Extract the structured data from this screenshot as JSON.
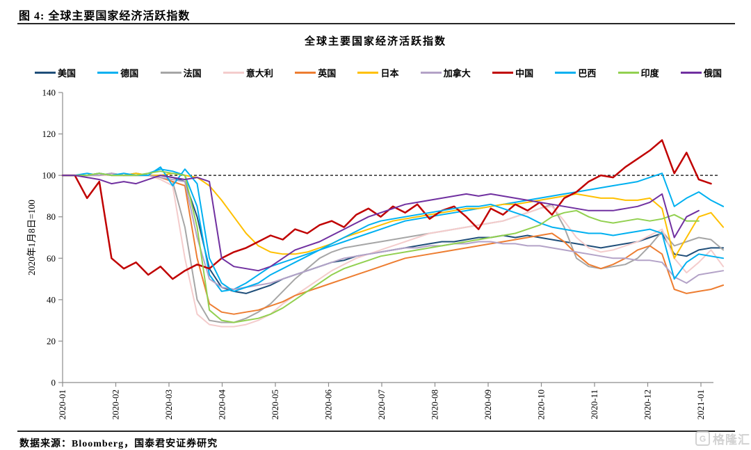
{
  "figure": {
    "header": "图 4: 全球主要国家经济活跃指数",
    "source": "数据来源：Bloomberg，国泰君安证券研究",
    "watermark": {
      "icon": "G",
      "text": "格隆汇"
    }
  },
  "chart_data": {
    "type": "line",
    "title": "全球主要国家经济活跃指数",
    "ylabel": "2020年1月8日=100",
    "ylim": [
      0,
      140
    ],
    "y_ticks": [
      0,
      20,
      40,
      60,
      80,
      100,
      120,
      140
    ],
    "x_tick_labels": [
      "2020-01",
      "2020-02",
      "2020-03",
      "2020-04",
      "2020-05",
      "2020-06",
      "2020-07",
      "2020-08",
      "2020-09",
      "2020-10",
      "2020-11",
      "2020-12",
      "2021-01"
    ],
    "x_interval": "weekly (index = weeks since 2020-01-01)",
    "grid": false,
    "legend_position": "top",
    "reference_line": {
      "value": 100,
      "style": "dashed",
      "color": "#000000"
    },
    "axis_color": "#8c8c8c",
    "series": [
      {
        "id": "us",
        "name": "美国",
        "color": "#1F4E79",
        "values": [
          100,
          100,
          100,
          101,
          100,
          100,
          101,
          100,
          100,
          99,
          97,
          80,
          55,
          46,
          44,
          43,
          45,
          47,
          50,
          52,
          54,
          56,
          58,
          59,
          61,
          62,
          63,
          64,
          65,
          66,
          67,
          68,
          68,
          69,
          70,
          70,
          71,
          70,
          71,
          70,
          69,
          68,
          67,
          66,
          65,
          66,
          67,
          68,
          70,
          72,
          62,
          61,
          64,
          65,
          65
        ]
      },
      {
        "id": "germany",
        "name": "德国",
        "color": "#00B0F0",
        "values": [
          100,
          100,
          101,
          100,
          101,
          100,
          100,
          101,
          103,
          102,
          100,
          85,
          52,
          44,
          45,
          48,
          52,
          56,
          58,
          60,
          62,
          64,
          66,
          68,
          70,
          72,
          74,
          76,
          78,
          79,
          80,
          81,
          82,
          83,
          84,
          85,
          86,
          87,
          88,
          89,
          90,
          91,
          92,
          93,
          94,
          95,
          96,
          97,
          99,
          101,
          85,
          89,
          92,
          88,
          85
        ]
      },
      {
        "id": "france",
        "name": "法国",
        "color": "#A6A6A6",
        "values": [
          100,
          100,
          100,
          100,
          101,
          100,
          100,
          100,
          99,
          97,
          75,
          40,
          30,
          29,
          29,
          31,
          34,
          38,
          44,
          50,
          55,
          60,
          63,
          65,
          66,
          67,
          68,
          69,
          70,
          71,
          72,
          73,
          74,
          75,
          76,
          77,
          78,
          80,
          82,
          84,
          86,
          75,
          60,
          56,
          55,
          56,
          57,
          60,
          66,
          73,
          66,
          68,
          70,
          69,
          64
        ]
      },
      {
        "id": "italy",
        "name": "意大利",
        "color": "#F4CCCC",
        "values": [
          100,
          100,
          100,
          100,
          100,
          101,
          100,
          100,
          98,
          95,
          60,
          33,
          28,
          27,
          27,
          28,
          30,
          33,
          38,
          42,
          46,
          50,
          54,
          57,
          60,
          62,
          64,
          66,
          68,
          70,
          72,
          73,
          74,
          75,
          76,
          77,
          78,
          80,
          82,
          84,
          85,
          78,
          70,
          65,
          63,
          64,
          66,
          68,
          71,
          74,
          60,
          53,
          58,
          64,
          56
        ]
      },
      {
        "id": "uk",
        "name": "英国",
        "color": "#ED7D31",
        "values": [
          100,
          100,
          100,
          100,
          101,
          100,
          100,
          100,
          99,
          97,
          95,
          60,
          38,
          34,
          33,
          34,
          35,
          37,
          39,
          42,
          44,
          46,
          48,
          50,
          52,
          54,
          56,
          58,
          60,
          61,
          62,
          63,
          64,
          65,
          66,
          67,
          68,
          69,
          70,
          71,
          72,
          68,
          62,
          57,
          55,
          57,
          60,
          64,
          66,
          62,
          45,
          43,
          44,
          45,
          47
        ]
      },
      {
        "id": "japan",
        "name": "日本",
        "color": "#FFC000",
        "values": [
          100,
          100,
          100,
          101,
          100,
          100,
          101,
          100,
          100,
          101,
          100,
          99,
          95,
          88,
          80,
          72,
          66,
          63,
          62,
          62,
          63,
          65,
          67,
          70,
          72,
          74,
          76,
          78,
          79,
          80,
          81,
          82,
          83,
          84,
          84,
          85,
          86,
          86,
          87,
          88,
          89,
          90,
          91,
          90,
          89,
          89,
          88,
          88,
          89,
          84,
          60,
          70,
          80,
          82,
          75
        ]
      },
      {
        "id": "canada",
        "name": "加拿大",
        "color": "#B3A2C7",
        "values": [
          100,
          100,
          100,
          100,
          101,
          100,
          100,
          100,
          99,
          98,
          97,
          70,
          50,
          46,
          45,
          46,
          47,
          48,
          50,
          52,
          54,
          56,
          58,
          60,
          61,
          62,
          63,
          64,
          65,
          65,
          66,
          66,
          67,
          67,
          68,
          68,
          67,
          67,
          66,
          66,
          65,
          64,
          63,
          62,
          61,
          60,
          60,
          59,
          59,
          58,
          51,
          48,
          52,
          53,
          54
        ]
      },
      {
        "id": "china",
        "name": "中国",
        "color": "#C00000",
        "values": [
          100,
          100,
          89,
          97,
          60,
          55,
          58,
          52,
          56,
          50,
          54,
          57,
          55,
          60,
          63,
          65,
          68,
          71,
          69,
          74,
          72,
          76,
          78,
          75,
          81,
          84,
          80,
          85,
          82,
          86,
          79,
          83,
          85,
          80,
          74,
          84,
          81,
          86,
          83,
          87,
          81,
          89,
          92,
          97,
          100,
          99,
          104,
          108,
          112,
          117,
          101,
          111,
          98,
          96
        ]
      },
      {
        "id": "brazil",
        "name": "巴西",
        "color": "#00B0F0",
        "values": [
          100,
          100,
          100,
          101,
          100,
          101,
          100,
          100,
          104,
          95,
          103,
          96,
          60,
          48,
          44,
          46,
          48,
          52,
          55,
          58,
          61,
          64,
          67,
          70,
          73,
          76,
          78,
          79,
          80,
          81,
          82,
          83,
          84,
          85,
          85,
          86,
          84,
          82,
          80,
          77,
          75,
          74,
          73,
          72,
          72,
          71,
          72,
          73,
          74,
          72,
          50,
          58,
          62,
          61,
          60
        ]
      },
      {
        "id": "india",
        "name": "印度",
        "color": "#92D050",
        "values": [
          100,
          100,
          100,
          101,
          100,
          100,
          100,
          101,
          102,
          101,
          100,
          75,
          35,
          30,
          29,
          30,
          31,
          33,
          36,
          40,
          44,
          48,
          52,
          55,
          57,
          59,
          61,
          62,
          63,
          64,
          65,
          66,
          67,
          68,
          69,
          70,
          71,
          72,
          74,
          76,
          80,
          82,
          83,
          80,
          78,
          77,
          78,
          79,
          78,
          79,
          81,
          78,
          78
        ]
      },
      {
        "id": "russia",
        "name": "俄国",
        "color": "#7030A0",
        "values": [
          100,
          100,
          99,
          98,
          96,
          97,
          96,
          98,
          100,
          99,
          98,
          99,
          97,
          60,
          56,
          55,
          54,
          56,
          60,
          64,
          66,
          68,
          71,
          74,
          77,
          80,
          82,
          84,
          86,
          87,
          88,
          89,
          90,
          91,
          90,
          91,
          90,
          89,
          88,
          87,
          86,
          85,
          84,
          83,
          83,
          83,
          84,
          85,
          87,
          91,
          70,
          80,
          83
        ]
      }
    ]
  }
}
